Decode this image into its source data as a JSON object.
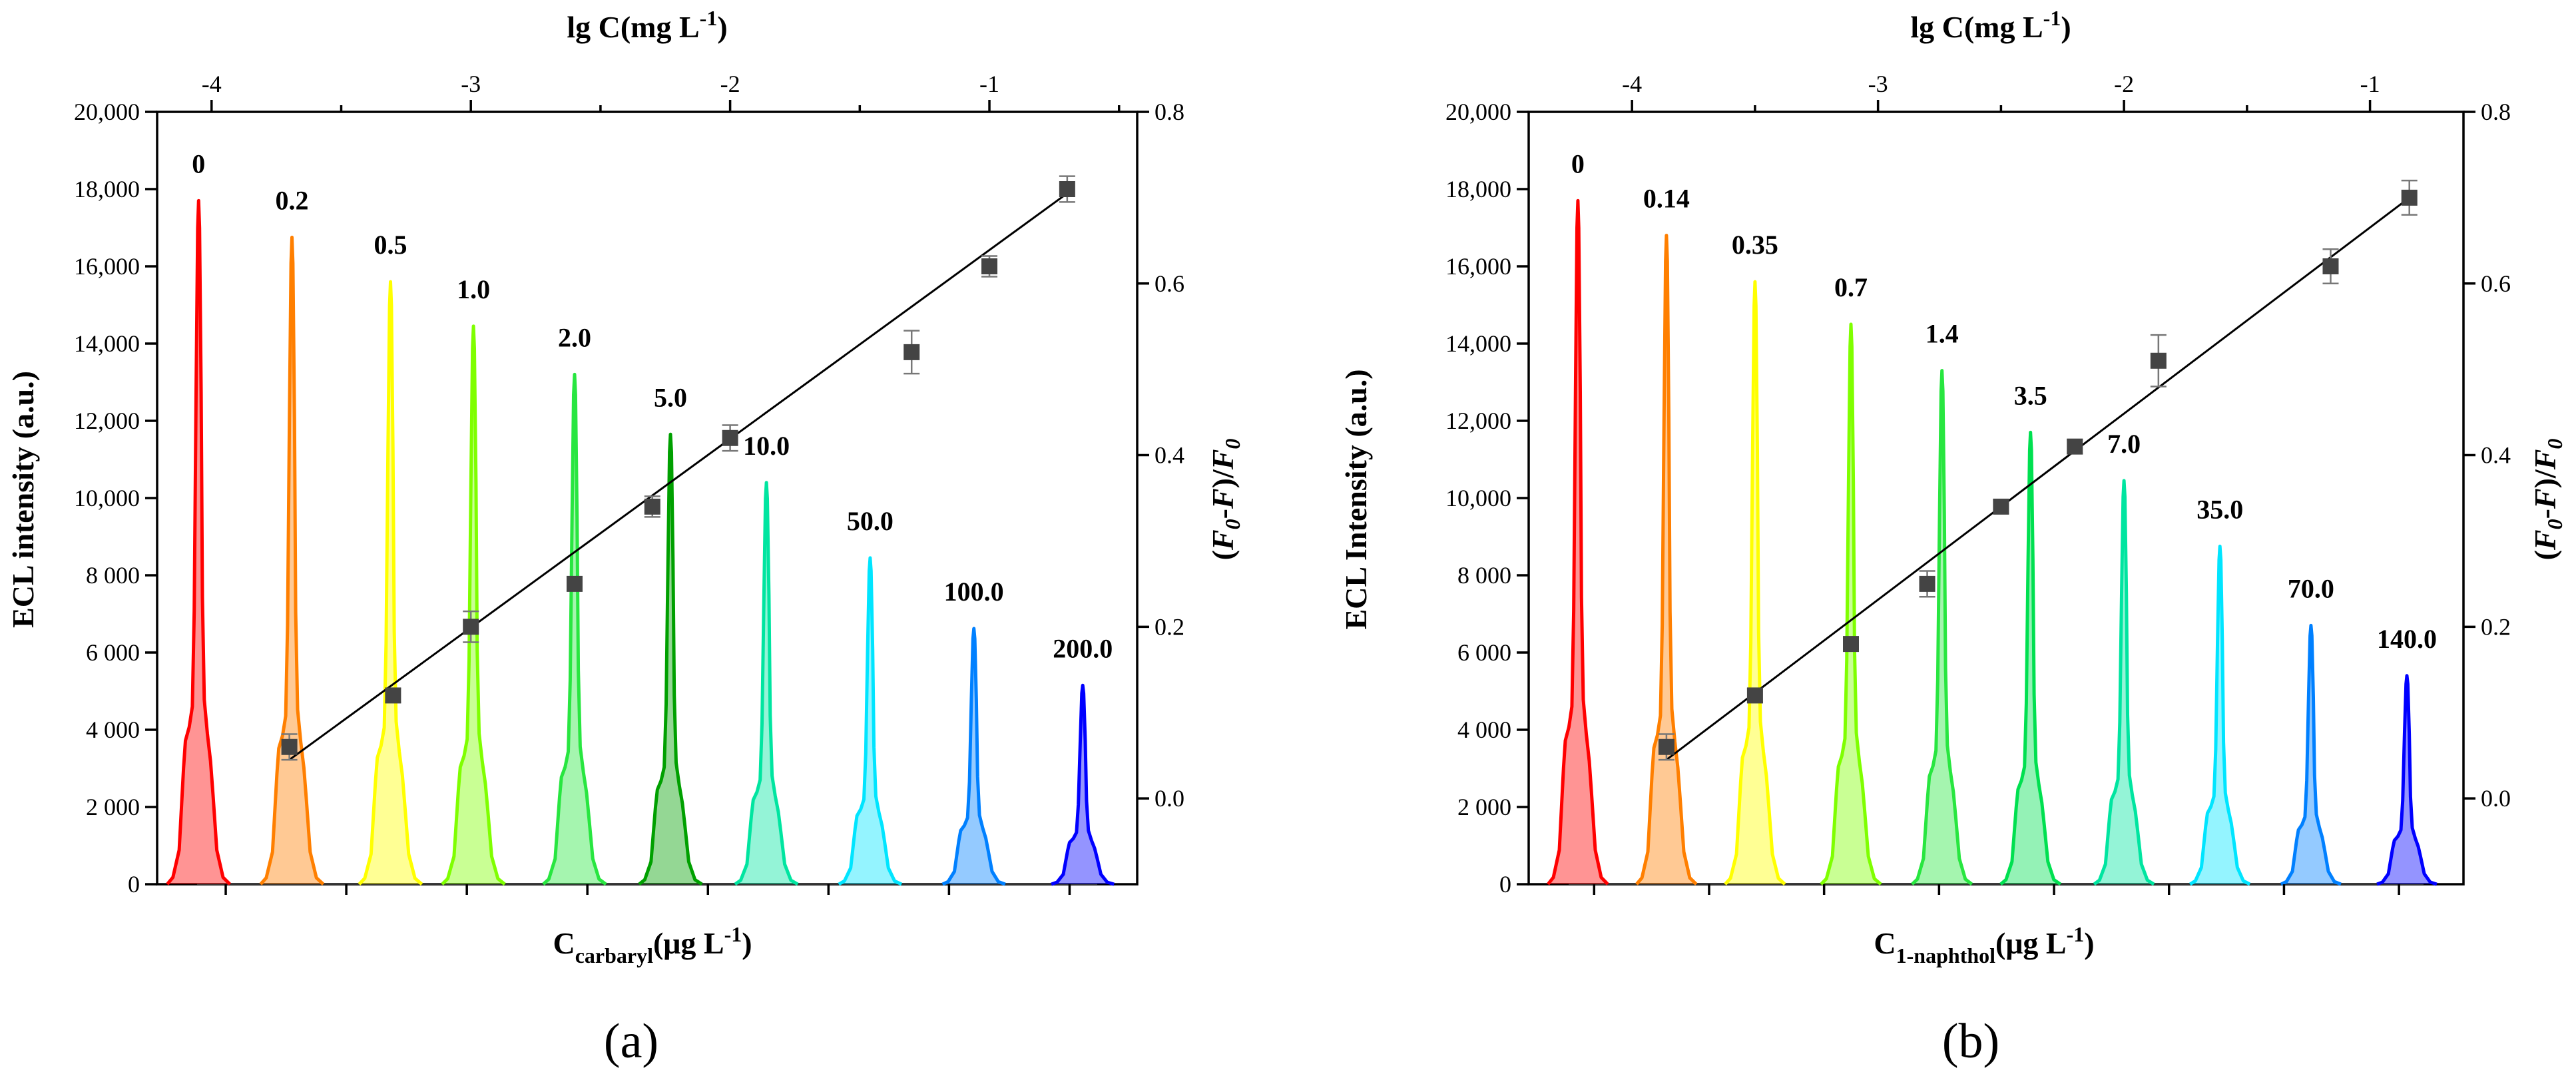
{
  "panel_labels": {
    "a": "(a)",
    "b": "(b)"
  },
  "chart_data": [
    {
      "type": "line",
      "panel": "(a)",
      "description": "ECL spectra stack with linear calibration of (F0-F)/F0 vs lg C",
      "xlabel_main": "C",
      "xlabel_sub": "carbaryl",
      "xlabel_tail": "(μg L",
      "xlabel_sup": "-1",
      "xlabel_close": ")",
      "top_label_main": "lg C(mg L",
      "top_label_sup": "-1",
      "top_label_close": ")",
      "ylabel_left": "ECL intensity (a.u.)",
      "ylabel_right": "(F0-F)/F0",
      "ylim_left": [
        0,
        20000
      ],
      "yticks_left": [
        0,
        2000,
        4000,
        6000,
        8000,
        10000,
        12000,
        14000,
        16000,
        18000,
        20000
      ],
      "ytick_labels_left": [
        "0",
        "2 000",
        "4 000",
        "6 000",
        "8 000",
        "10,000",
        "12,000",
        "14,000",
        "16,000",
        "18,000",
        "20,000"
      ],
      "ylim_right": [
        -0.1,
        0.8
      ],
      "yticks_right": [
        0.0,
        0.2,
        0.4,
        0.6,
        0.8
      ],
      "ytick_labels_right": [
        "0.0",
        "0.2",
        "0.4",
        "0.6",
        "0.8"
      ],
      "xlim_top": [
        -4.21,
        -0.43
      ],
      "xticks_top": [
        -4,
        -3,
        -2,
        -1
      ],
      "xtick_labels_top": [
        "-4",
        "-3",
        "-2",
        "-1"
      ],
      "peaks": [
        {
          "concentration": "0",
          "lg_c": -4.05,
          "intensity": 17700,
          "color": "#ff0000"
        },
        {
          "concentration": "0.2",
          "lg_c": -3.69,
          "intensity": 16750,
          "color": "#ff7f00"
        },
        {
          "concentration": "0.5",
          "lg_c": -3.31,
          "intensity": 15600,
          "color": "#ffff00"
        },
        {
          "concentration": "1.0",
          "lg_c": -2.99,
          "intensity": 14450,
          "color": "#7fff00"
        },
        {
          "concentration": "2.0",
          "lg_c": -2.6,
          "intensity": 13200,
          "color": "#28e640"
        },
        {
          "concentration": "5.0",
          "lg_c": -2.23,
          "intensity": 11650,
          "color": "#00a000"
        },
        {
          "concentration": "10.0",
          "lg_c": -1.86,
          "intensity": 10400,
          "color": "#00e5a0"
        },
        {
          "concentration": "50.0",
          "lg_c": -1.46,
          "intensity": 8450,
          "color": "#00e5ff"
        },
        {
          "concentration": "100.0",
          "lg_c": -1.06,
          "intensity": 6620,
          "color": "#0080ff"
        },
        {
          "concentration": "200.0",
          "lg_c": -0.64,
          "intensity": 5150,
          "color": "#0000ff"
        }
      ],
      "points": {
        "x": [
          -3.7,
          -3.3,
          -3.0,
          -2.6,
          -2.3,
          -2.0,
          -1.3,
          -1.0,
          -0.7
        ],
        "y": [
          0.06,
          0.12,
          0.2,
          0.25,
          0.34,
          0.42,
          0.52,
          0.62,
          0.71
        ],
        "err": [
          0.015,
          0.008,
          0.018,
          0.008,
          0.012,
          0.015,
          0.025,
          0.012,
          0.015
        ]
      },
      "fit": {
        "x": [
          -3.7,
          -0.7
        ],
        "y": [
          0.045,
          0.705
        ]
      }
    },
    {
      "type": "line",
      "panel": "(b)",
      "description": "ECL spectra stack with linear calibration of (F0-F)/F0 vs lg C",
      "xlabel_main": "C",
      "xlabel_sub": "1-naphthol",
      "xlabel_tail": "(μg L",
      "xlabel_sup": "-1",
      "xlabel_close": ")",
      "top_label_main": "lg C(mg L",
      "top_label_sup": "-1",
      "top_label_close": ")",
      "ylabel_left": "ECL Intensity (a.u.)",
      "ylabel_right": "(F0-F)/F0",
      "ylim_left": [
        0,
        20000
      ],
      "yticks_left": [
        0,
        2000,
        4000,
        6000,
        8000,
        10000,
        12000,
        14000,
        16000,
        18000,
        20000
      ],
      "ytick_labels_left": [
        "0",
        "2 000",
        "4 000",
        "6 000",
        "8 000",
        "10,000",
        "12,000",
        "14,000",
        "16,000",
        "18,000",
        "20,000"
      ],
      "ylim_right": [
        -0.1,
        0.8
      ],
      "yticks_right": [
        0.0,
        0.2,
        0.4,
        0.6,
        0.8
      ],
      "ytick_labels_right": [
        "0.0",
        "0.2",
        "0.4",
        "0.6",
        "0.8"
      ],
      "xlim_top": [
        -4.42,
        -0.62
      ],
      "xticks_top": [
        -4,
        -3,
        -2,
        -1
      ],
      "xtick_labels_top": [
        "-4",
        "-3",
        "-2",
        "-1"
      ],
      "peaks": [
        {
          "concentration": "0",
          "lg_c": -4.22,
          "intensity": 17700,
          "color": "#ff0000"
        },
        {
          "concentration": "0.14",
          "lg_c": -3.86,
          "intensity": 16800,
          "color": "#ff7f00"
        },
        {
          "concentration": "0.35",
          "lg_c": -3.5,
          "intensity": 15600,
          "color": "#ffff00"
        },
        {
          "concentration": "0.7",
          "lg_c": -3.11,
          "intensity": 14500,
          "color": "#7fff00"
        },
        {
          "concentration": "1.4",
          "lg_c": -2.74,
          "intensity": 13300,
          "color": "#28e640"
        },
        {
          "concentration": "3.5",
          "lg_c": -2.38,
          "intensity": 11700,
          "color": "#00e050"
        },
        {
          "concentration": "7.0",
          "lg_c": -2.0,
          "intensity": 10450,
          "color": "#00e5a0"
        },
        {
          "concentration": "35.0",
          "lg_c": -1.61,
          "intensity": 8750,
          "color": "#00e5ff"
        },
        {
          "concentration": "70.0",
          "lg_c": -1.24,
          "intensity": 6700,
          "color": "#0080ff"
        },
        {
          "concentration": "140.0",
          "lg_c": -0.85,
          "intensity": 5400,
          "color": "#0000ff"
        }
      ],
      "points": {
        "x": [
          -3.86,
          -3.5,
          -3.11,
          -2.8,
          -2.5,
          -2.2,
          -1.86,
          -1.16,
          -0.84
        ],
        "y": [
          0.06,
          0.12,
          0.18,
          0.25,
          0.34,
          0.41,
          0.51,
          0.62,
          0.7
        ],
        "err": [
          0.015,
          0.008,
          0.008,
          0.015,
          0.008,
          0.008,
          0.03,
          0.02,
          0.02
        ]
      },
      "fit": {
        "x": [
          -3.86,
          -0.84
        ],
        "y": [
          0.045,
          0.7
        ]
      }
    }
  ]
}
